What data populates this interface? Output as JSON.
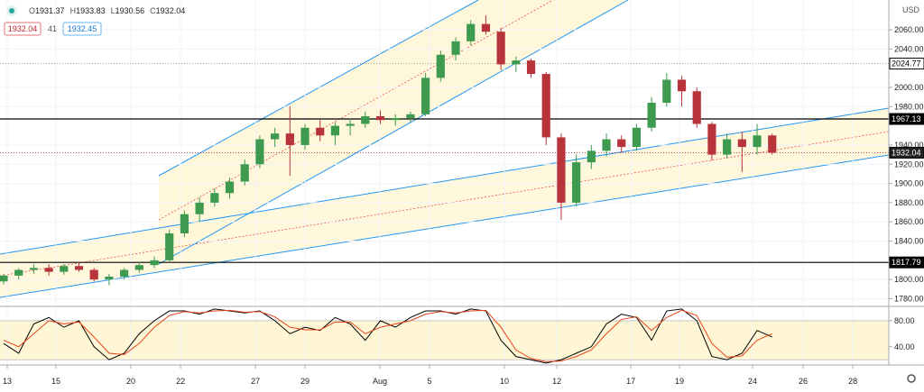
{
  "header": {
    "items": [
      {
        "key": "O",
        "value": "1931.37"
      },
      {
        "key": "H",
        "value": "1933.83"
      },
      {
        "key": "L",
        "value": "1930.56"
      },
      {
        "key": "C",
        "value": "1932.04"
      }
    ],
    "badges": [
      "1932.04",
      "41",
      "1932.45"
    ],
    "currency": "USD"
  },
  "chart_data": [
    {
      "type": "candlestick",
      "x": [
        0,
        1,
        2,
        3,
        4,
        5,
        6,
        7,
        8,
        9,
        10,
        11,
        12,
        13,
        14,
        15,
        16,
        17,
        18,
        19,
        20,
        21,
        22,
        23,
        24,
        25,
        26,
        27,
        28,
        29,
        30,
        31,
        32,
        33,
        34,
        35,
        36,
        37,
        38,
        39,
        40,
        41,
        42,
        43,
        44,
        45,
        46,
        47,
        48,
        49,
        50,
        51
      ],
      "open": [
        1798,
        1804,
        1810,
        1812,
        1808,
        1814,
        1810,
        1800,
        1803,
        1810,
        1815,
        1820,
        1848,
        1868,
        1880,
        1890,
        1902,
        1920,
        1946,
        1952,
        1940,
        1958,
        1950,
        1960,
        1962,
        1970,
        1966,
        1968,
        1972,
        2010,
        2034,
        2048,
        2066,
        2058,
        2024,
        2028,
        2014,
        1948,
        1880,
        1922,
        1934,
        1946,
        1938,
        1958,
        1984,
        2008,
        1996,
        1962,
        1930,
        1946,
        1938,
        1950
      ],
      "high": [
        1806,
        1812,
        1816,
        1816,
        1816,
        1818,
        1812,
        1806,
        1812,
        1818,
        1824,
        1852,
        1872,
        1885,
        1895,
        1906,
        1925,
        1950,
        1958,
        1980,
        1962,
        1966,
        1964,
        1968,
        1975,
        1976,
        1972,
        1975,
        2015,
        2038,
        2052,
        2070,
        2075,
        2062,
        2032,
        2030,
        2016,
        1952,
        1930,
        1940,
        1952,
        1950,
        1962,
        1990,
        2015,
        2012,
        2000,
        1964,
        1952,
        1954,
        1962,
        1952
      ],
      "low": [
        1795,
        1800,
        1806,
        1804,
        1805,
        1808,
        1798,
        1794,
        1800,
        1807,
        1812,
        1818,
        1844,
        1860,
        1876,
        1884,
        1898,
        1916,
        1938,
        1908,
        1935,
        1944,
        1940,
        1950,
        1958,
        1962,
        1960,
        1964,
        1970,
        2006,
        2028,
        2044,
        2055,
        2018,
        2016,
        2010,
        1940,
        1862,
        1876,
        1915,
        1928,
        1932,
        1934,
        1954,
        1980,
        1980,
        1958,
        1924,
        1926,
        1912,
        1930,
        1930
      ],
      "close": [
        1804,
        1810,
        1812,
        1808,
        1814,
        1810,
        1800,
        1803,
        1810,
        1815,
        1820,
        1848,
        1868,
        1880,
        1890,
        1902,
        1920,
        1946,
        1952,
        1940,
        1958,
        1950,
        1960,
        1962,
        1970,
        1966,
        1968,
        1972,
        2010,
        2034,
        2048,
        2066,
        2058,
        2024,
        2028,
        2014,
        1948,
        1880,
        1922,
        1934,
        1946,
        1938,
        1958,
        1984,
        2008,
        1996,
        1962,
        1930,
        1946,
        1938,
        1950,
        1932
      ],
      "up_color": "#3d9a4e",
      "down_color": "#b8333a",
      "xlim": [
        -0.24,
        58.74
      ],
      "xticks": [
        {
          "value": 0.24,
          "label": "13"
        },
        {
          "value": 3.47,
          "label": "15"
        },
        {
          "value": 8.44,
          "label": "20"
        },
        {
          "value": 11.74,
          "label": "22"
        },
        {
          "value": 16.71,
          "label": "27"
        },
        {
          "value": 20.0,
          "label": "29"
        },
        {
          "value": 24.97,
          "label": "Aug"
        },
        {
          "value": 28.26,
          "label": "5"
        },
        {
          "value": 33.23,
          "label": "10"
        },
        {
          "value": 36.71,
          "label": "12"
        },
        {
          "value": 41.62,
          "label": "17"
        },
        {
          "value": 44.85,
          "label": "19"
        },
        {
          "value": 49.7,
          "label": "24"
        },
        {
          "value": 53.05,
          "label": "26"
        },
        {
          "value": 56.35,
          "label": "28"
        }
      ],
      "ylim": [
        1772,
        2091
      ],
      "yticks": [
        {
          "value": 1780,
          "label": "1780.00"
        },
        {
          "value": 1800,
          "label": "1800.00"
        },
        {
          "value": 1840,
          "label": "1840.00"
        },
        {
          "value": 1860,
          "label": "1860.00"
        },
        {
          "value": 1880,
          "label": "1880.00"
        },
        {
          "value": 1900,
          "label": "1900.00"
        },
        {
          "value": 1920,
          "label": "1920.00"
        },
        {
          "value": 1940,
          "label": "1940.00"
        },
        {
          "value": 1980,
          "label": "1980.00"
        },
        {
          "value": 2000,
          "label": "2000.00"
        },
        {
          "value": 2040,
          "label": "2040.00"
        },
        {
          "value": 2060,
          "label": "2060.00"
        }
      ],
      "hlines": [
        {
          "value": 1967.13,
          "style": "solid",
          "color": "#000000"
        },
        {
          "value": 1817.79,
          "style": "solid",
          "color": "#000000"
        },
        {
          "value": 2024.77,
          "style": "dotted",
          "color": "#888888"
        },
        {
          "value": 1932.04,
          "style": "dotted",
          "color": "#b8333a"
        }
      ],
      "grid": true
    },
    {
      "type": "line",
      "x": [
        0,
        1,
        2,
        3,
        4,
        5,
        6,
        7,
        8,
        9,
        10,
        11,
        12,
        13,
        14,
        15,
        16,
        17,
        18,
        19,
        20,
        21,
        22,
        23,
        24,
        25,
        26,
        27,
        28,
        29,
        30,
        31,
        32,
        33,
        34,
        35,
        36,
        37,
        38,
        39,
        40,
        41,
        42,
        43,
        44,
        45,
        46,
        47,
        48,
        49,
        50,
        51
      ],
      "series": [
        {
          "color": "#000000",
          "values": [
            45,
            30,
            75,
            85,
            70,
            80,
            40,
            20,
            30,
            60,
            80,
            95,
            95,
            90,
            98,
            95,
            92,
            95,
            80,
            60,
            70,
            65,
            85,
            75,
            50,
            80,
            70,
            85,
            95,
            95,
            90,
            98,
            95,
            50,
            25,
            20,
            15,
            20,
            30,
            40,
            75,
            90,
            85,
            50,
            95,
            98,
            80,
            25,
            20,
            30,
            65,
            55
          ]
        },
        {
          "color": "#e8441c",
          "values": [
            50,
            40,
            60,
            80,
            75,
            78,
            55,
            30,
            28,
            45,
            70,
            88,
            94,
            92,
            95,
            96,
            93,
            94,
            86,
            70,
            66,
            66,
            78,
            78,
            60,
            70,
            75,
            80,
            90,
            94,
            92,
            95,
            96,
            70,
            35,
            22,
            17,
            18,
            25,
            35,
            60,
            82,
            86,
            65,
            85,
            96,
            88,
            45,
            24,
            26,
            50,
            60
          ]
        }
      ],
      "band": [
        20,
        80
      ],
      "xlim": [
        -0.24,
        58.74
      ],
      "ylim": [
        12,
        102
      ],
      "yticks": [
        {
          "value": 40,
          "label": "40.00"
        },
        {
          "value": 80,
          "label": "80.00"
        }
      ]
    }
  ]
}
